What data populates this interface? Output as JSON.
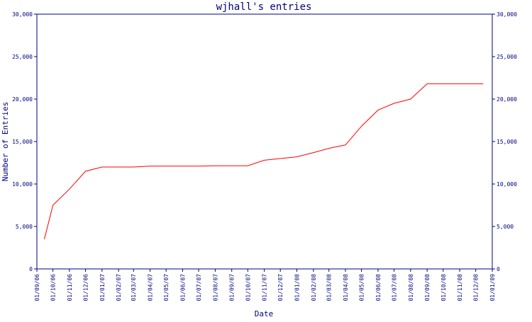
{
  "chart_data": {
    "type": "line",
    "title": "wjhall's entries",
    "xlabel": "Date",
    "ylabel": "Number of Entries",
    "x_tick_labels": [
      "01/09/06",
      "01/10/06",
      "01/11/06",
      "01/12/06",
      "01/01/07",
      "01/02/07",
      "01/03/07",
      "01/04/07",
      "01/05/07",
      "01/06/07",
      "01/07/07",
      "01/08/07",
      "01/09/07",
      "01/10/07",
      "01/11/07",
      "01/12/07",
      "01/01/08",
      "01/02/08",
      "01/03/08",
      "01/04/08",
      "01/05/08",
      "01/06/08",
      "01/07/08",
      "01/08/08",
      "01/09/08",
      "01/10/08",
      "01/11/08",
      "01/12/08",
      "01/01/09"
    ],
    "y_tick_labels": [
      "0",
      "5,000",
      "10,000",
      "15,000",
      "20,000",
      "25,000",
      "30,000"
    ],
    "ylim": [
      0,
      30000
    ],
    "grid": false,
    "line_color": "#ff0000",
    "axis_color": "#00007f",
    "series": [
      {
        "x": [
          "2006-09-15",
          "2006-10-01",
          "2006-11-01",
          "2006-12-01",
          "2007-01-01",
          "2007-02-01",
          "2007-03-01",
          "2007-04-01",
          "2007-05-01",
          "2007-06-01",
          "2007-07-01",
          "2007-08-01",
          "2007-09-01",
          "2007-10-01",
          "2007-11-01",
          "2007-12-01",
          "2008-01-01",
          "2008-02-01",
          "2008-03-01",
          "2008-04-01",
          "2008-05-01",
          "2008-06-01",
          "2008-07-01",
          "2008-08-01",
          "2008-09-01",
          "2008-10-01",
          "2008-11-01",
          "2008-12-01",
          "2008-12-15"
        ],
        "y": [
          3500,
          7500,
          9400,
          11500,
          12000,
          12000,
          12000,
          12100,
          12100,
          12100,
          12100,
          12150,
          12150,
          12150,
          12800,
          13000,
          13200,
          13700,
          14200,
          14600,
          16800,
          18700,
          19500,
          20000,
          21800,
          21800,
          21800,
          21800,
          21800
        ]
      }
    ]
  }
}
